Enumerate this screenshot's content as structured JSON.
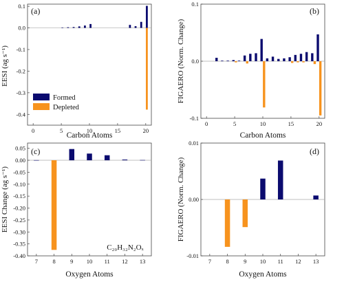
{
  "colors": {
    "formed": "#0b0b6f",
    "depleted": "#f7931e",
    "axis": "#444444",
    "zero": "#aaaaaa"
  },
  "chart_data": [
    {
      "type": "bar",
      "panel": "(a)",
      "xlabel": "Carbon Atoms",
      "ylabel": "EESI (ag s⁻¹)",
      "xlim": [
        -1,
        21
      ],
      "ylim": [
        -0.45,
        0.11
      ],
      "xticks": [
        0,
        5,
        10,
        15,
        20
      ],
      "yticks": [
        0.1,
        0.0,
        -0.1,
        -0.2,
        -0.3,
        -0.4
      ],
      "ytick_labels": [
        "0.1",
        "0.0",
        "-0.1",
        "-0.2",
        "-0.3",
        "-0.4"
      ],
      "legend": {
        "position": "bottom-left",
        "entries": [
          "Formed",
          "Depleted"
        ]
      },
      "series": [
        {
          "name": "Formed",
          "x": [
            5,
            6,
            7,
            8,
            9,
            10,
            17,
            18,
            19,
            20
          ],
          "values": [
            0.002,
            0.003,
            0.004,
            0.007,
            0.011,
            0.018,
            0.014,
            0.008,
            0.028,
            0.102
          ]
        },
        {
          "name": "Depleted",
          "x": [
            20
          ],
          "values": [
            -0.378
          ]
        }
      ]
    },
    {
      "type": "bar",
      "panel": "(b)",
      "xlabel": "Carbon Atoms",
      "ylabel": "FIGAERO (Norm. Change)",
      "xlim": [
        -1,
        21
      ],
      "ylim": [
        -0.1,
        0.1
      ],
      "xticks": [
        0,
        5,
        10,
        15,
        20
      ],
      "yticks": [
        0.1,
        0.0,
        -0.1
      ],
      "ytick_labels": [
        "0.1",
        "0.0",
        "-0.1"
      ],
      "series": [
        {
          "name": "Formed",
          "x": [
            2,
            3,
            4,
            5,
            6,
            7,
            8,
            9,
            10,
            11,
            12,
            13,
            14,
            15,
            16,
            17,
            18,
            19,
            20
          ],
          "values": [
            0.006,
            0.001,
            0.001,
            0.002,
            0.001,
            0.01,
            0.013,
            0.014,
            0.039,
            0.005,
            0.008,
            0.004,
            0.005,
            0.007,
            0.011,
            0.013,
            0.016,
            0.014,
            0.047
          ]
        },
        {
          "name": "Depleted",
          "x": [
            5,
            7,
            10,
            15,
            16,
            17,
            19,
            20
          ],
          "values": [
            -0.002,
            -0.004,
            -0.081,
            -0.003,
            -0.002,
            -0.002,
            -0.005,
            -0.095
          ]
        }
      ]
    },
    {
      "type": "bar",
      "panel": "(c)",
      "xlabel": "",
      "ylabel": "EESI Change (ag s⁻¹)",
      "xlim": [
        6.5,
        13.5
      ],
      "ylim": [
        -0.4,
        0.072
      ],
      "xticks": [
        7,
        8,
        9,
        10,
        11,
        12,
        13
      ],
      "yticks": [
        0.05,
        0.0,
        -0.05,
        -0.1,
        -0.15,
        -0.2,
        -0.25,
        -0.3,
        -0.35,
        -0.4
      ],
      "ytick_labels": [
        "0.05",
        "0.00",
        "-0.05",
        "-0.10",
        "-0.15",
        "-0.20",
        "-0.25",
        "-0.30",
        "-0.35",
        "-0.40"
      ],
      "annotation": "C₂₀H₃₂N₂Oₓ",
      "series": [
        {
          "name": "Formed",
          "x": [
            7,
            9,
            10,
            11,
            12,
            13
          ],
          "values": [
            0.0005,
            0.047,
            0.028,
            0.021,
            0.003,
            0.001
          ]
        },
        {
          "name": "Depleted",
          "x": [
            8
          ],
          "values": [
            -0.375
          ]
        }
      ]
    },
    {
      "type": "bar",
      "panel": "(d)",
      "xlabel": "Oxygen Atoms",
      "ylabel": "FIGAERO (Norm. Change)",
      "xlim": [
        6.5,
        13.5
      ],
      "ylim": [
        -0.01,
        0.01
      ],
      "xticks": [
        7,
        8,
        9,
        10,
        11,
        12,
        13
      ],
      "yticks": [
        0.01,
        0.0,
        -0.01
      ],
      "ytick_labels": [
        "0.01",
        "0.00",
        "-0.01"
      ],
      "series": [
        {
          "name": "Formed",
          "x": [
            10,
            11,
            13
          ],
          "values": [
            0.0037,
            0.0069,
            0.0007
          ]
        },
        {
          "name": "Depleted",
          "x": [
            8,
            9
          ],
          "values": [
            -0.0084,
            -0.0049
          ]
        }
      ]
    }
  ],
  "shared_xlabel_c": "Oxygen Atoms"
}
